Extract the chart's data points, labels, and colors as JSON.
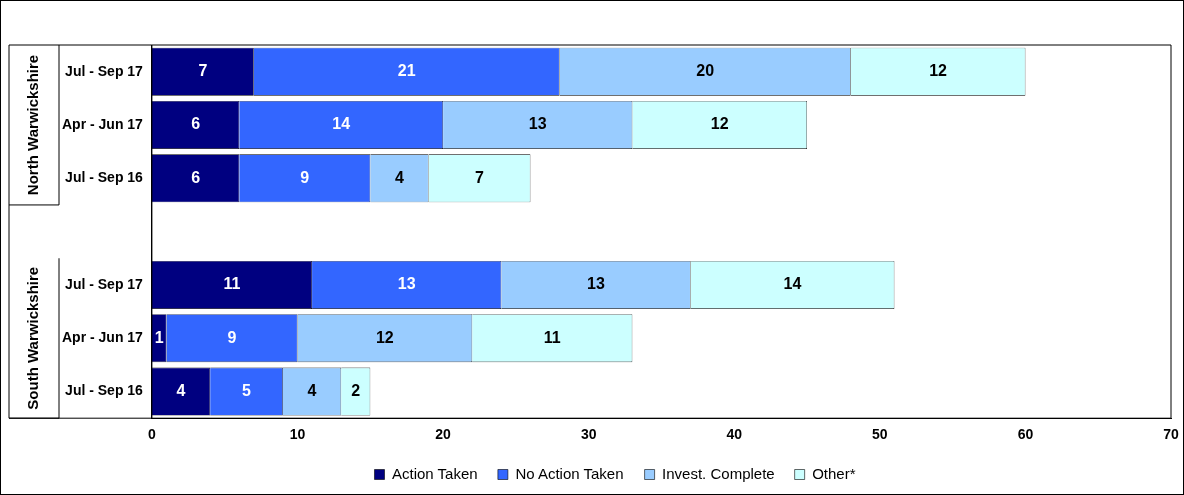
{
  "chart_data": {
    "type": "bar",
    "orientation": "horizontal",
    "stacked": true,
    "categories": [
      "Jul - Sep 17",
      "Apr - Jun 17",
      "Jul - Sep 16",
      null,
      "Jul - Sep 17",
      "Apr - Jun 17",
      "Jul - Sep 16"
    ],
    "series": [
      {
        "name": "Action Taken",
        "color": "#000080",
        "values": [
          7,
          6,
          6,
          null,
          11,
          1,
          4
        ]
      },
      {
        "name": "No Action Taken",
        "color": "#3366ff",
        "values": [
          21,
          14,
          9,
          null,
          13,
          9,
          5
        ]
      },
      {
        "name": "Invest. Complete",
        "color": "#99ccff",
        "values": [
          20,
          13,
          4,
          null,
          13,
          12,
          4
        ]
      },
      {
        "name": "Other*",
        "color": "#ccffff",
        "values": [
          12,
          12,
          7,
          null,
          14,
          11,
          2
        ]
      }
    ],
    "xlim": [
      0,
      70
    ],
    "xticks": [
      0,
      10,
      20,
      30,
      40,
      50,
      60,
      70
    ],
    "grid": false,
    "legend": "bottom",
    "data_labels": true,
    "annotations": [
      "North Warwickshire",
      "South Warwickshire"
    ]
  }
}
